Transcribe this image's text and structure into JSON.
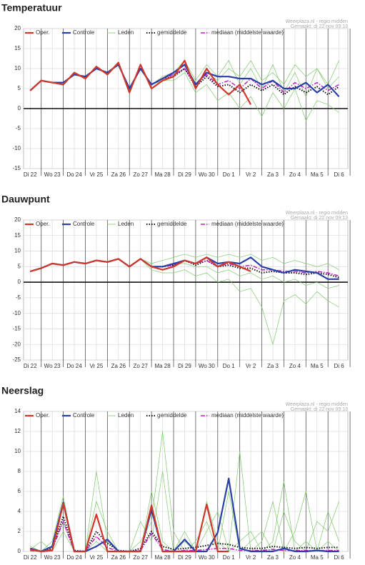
{
  "chart_data": [
    {
      "type": "line",
      "title": "Temperatuur",
      "source": "Weerplaza.nl - regio midden",
      "created": "Gemaakt: di 22 nov 09:13",
      "x": [
        0,
        0.5,
        1,
        1.5,
        2,
        2.5,
        3,
        3.5,
        4,
        4.5,
        5,
        5.5,
        6,
        6.5,
        7,
        7.5,
        8,
        8.5,
        9,
        9.5,
        10,
        10.5,
        11,
        11.5,
        12,
        12.5,
        13,
        13.5,
        14
      ],
      "xlim": [
        -0.3,
        14.4
      ],
      "xticks": [
        {
          "value": 0,
          "label": "Di 22"
        },
        {
          "value": 1,
          "label": "Wo 23"
        },
        {
          "value": 2,
          "label": "Do 24"
        },
        {
          "value": 3,
          "label": "Vr 25"
        },
        {
          "value": 4,
          "label": "Za 26"
        },
        {
          "value": 5,
          "label": "Zo 27"
        },
        {
          "value": 6,
          "label": "Ma 28"
        },
        {
          "value": 7,
          "label": "Di 29"
        },
        {
          "value": 8,
          "label": "Wo 30"
        },
        {
          "value": 9,
          "label": "Do 1"
        },
        {
          "value": 10,
          "label": "Vr 2"
        },
        {
          "value": 11,
          "label": "Za 3"
        },
        {
          "value": 12,
          "label": "Zo 4"
        },
        {
          "value": 13,
          "label": "Ma 5"
        },
        {
          "value": 14,
          "label": "Di 6"
        }
      ],
      "ylim": [
        -15,
        20
      ],
      "yticks": [
        -15,
        -10,
        -5,
        0,
        5,
        10,
        15,
        20
      ],
      "grid": true,
      "zero_line": true,
      "series": [
        {
          "name": "Oper.",
          "color": "#d0372b",
          "style": "solid",
          "values": [
            4.5,
            7,
            6.5,
            6,
            9,
            7.5,
            10.5,
            8.5,
            11.5,
            4,
            11,
            5,
            7,
            8,
            12,
            5,
            10,
            6,
            3.5,
            6,
            1,
            null,
            null,
            null,
            null,
            null,
            null,
            null,
            null
          ]
        },
        {
          "name": "Controle",
          "color": "#2b3fa8",
          "style": "solid",
          "values": [
            4.5,
            7,
            6.5,
            6.5,
            8.5,
            8,
            10,
            9,
            11,
            5,
            10,
            6,
            7.5,
            9,
            11,
            6,
            9,
            8,
            8,
            7.5,
            7.5,
            6,
            7,
            5,
            5,
            6.5,
            4,
            6,
            3
          ]
        },
        {
          "name": "Leden",
          "color": "#7ec86a",
          "style": "thin",
          "members": [
            [
              4.5,
              7,
              6.5,
              6.5,
              8.5,
              8,
              10,
              9,
              11,
              5,
              10,
              6,
              8,
              9,
              12,
              7,
              11,
              8,
              12,
              6,
              10,
              5,
              11,
              4,
              9,
              3,
              10,
              5,
              8
            ],
            [
              4.5,
              7,
              6.5,
              6.5,
              8.5,
              8,
              10,
              9,
              11,
              5,
              10,
              6,
              7,
              7,
              9,
              4,
              6,
              2,
              4,
              0,
              3,
              -2,
              4,
              0,
              5,
              -3,
              2,
              1,
              -1
            ],
            [
              4.5,
              7,
              6.5,
              6.5,
              8.5,
              8,
              10,
              9,
              11,
              5,
              10,
              6,
              7,
              8,
              10,
              6,
              9,
              7,
              10,
              8,
              12,
              7,
              9,
              6,
              11,
              8,
              10,
              6,
              12
            ]
          ]
        },
        {
          "name": "gemiddelde",
          "color": "#111111",
          "style": "dotted",
          "values": [
            4.5,
            7,
            6.5,
            6.5,
            8.5,
            8,
            10,
            9,
            11,
            5,
            10,
            6,
            7.5,
            8,
            10,
            5.5,
            8,
            5.5,
            6,
            4,
            6,
            4.5,
            6,
            3.5,
            5.5,
            4,
            5.5,
            3.5,
            5.5
          ]
        },
        {
          "name": "mediaan (middelste waarde)",
          "color": "#c020c0",
          "style": "dashdot",
          "values": [
            4.5,
            7,
            6.5,
            6.5,
            8.5,
            8,
            10,
            9,
            11,
            5,
            10,
            6,
            7.5,
            8.5,
            10,
            6,
            8.5,
            6,
            7,
            5,
            7.5,
            5,
            7,
            4,
            6.5,
            5,
            6.5,
            4.5,
            6
          ]
        }
      ]
    },
    {
      "type": "line",
      "title": "Dauwpunt",
      "source": "Weerplaza.nl - regio midden",
      "created": "Gemaakt: di 22 nov 09:13",
      "x": [
        0,
        0.5,
        1,
        1.5,
        2,
        2.5,
        3,
        3.5,
        4,
        4.5,
        5,
        5.5,
        6,
        6.5,
        7,
        7.5,
        8,
        8.5,
        9,
        9.5,
        10,
        10.5,
        11,
        11.5,
        12,
        12.5,
        13,
        13.5,
        14
      ],
      "xlim": [
        -0.3,
        14.4
      ],
      "xticks": [
        {
          "value": 0,
          "label": "Di 22"
        },
        {
          "value": 1,
          "label": "Wo 23"
        },
        {
          "value": 2,
          "label": "Do 24"
        },
        {
          "value": 3,
          "label": "Vr 25"
        },
        {
          "value": 4,
          "label": "Za 26"
        },
        {
          "value": 5,
          "label": "Zo 27"
        },
        {
          "value": 6,
          "label": "Ma 28"
        },
        {
          "value": 7,
          "label": "Di 29"
        },
        {
          "value": 8,
          "label": "Wo 30"
        },
        {
          "value": 9,
          "label": "Do 1"
        },
        {
          "value": 10,
          "label": "Vr 2"
        },
        {
          "value": 11,
          "label": "Za 3"
        },
        {
          "value": 12,
          "label": "Zo 4"
        },
        {
          "value": 13,
          "label": "Ma 5"
        },
        {
          "value": 14,
          "label": "Di 6"
        }
      ],
      "ylim": [
        -25,
        20
      ],
      "yticks": [
        -25,
        -20,
        -15,
        -10,
        -5,
        0,
        5,
        10,
        15,
        20
      ],
      "grid": true,
      "zero_line": true,
      "series": [
        {
          "name": "Oper.",
          "color": "#d0372b",
          "style": "solid",
          "values": [
            3.5,
            4.5,
            6,
            5.5,
            6.5,
            6,
            7,
            6.5,
            7.5,
            5,
            7.5,
            5,
            4,
            5,
            7,
            6,
            8,
            5,
            6.5,
            5,
            3.5,
            null,
            null,
            null,
            null,
            null,
            null,
            null,
            null
          ]
        },
        {
          "name": "Controle",
          "color": "#2b3fa8",
          "style": "solid",
          "values": [
            3.5,
            4.5,
            6,
            5.5,
            6.5,
            6,
            7,
            6.5,
            7.5,
            5,
            7.5,
            5,
            5,
            6,
            7,
            6,
            8,
            6,
            6.5,
            6,
            8,
            5,
            4,
            3,
            4,
            3.5,
            3,
            1,
            1
          ]
        },
        {
          "name": "Leden",
          "color": "#7ec86a",
          "style": "thin",
          "members": [
            [
              3.5,
              4.5,
              6,
              5.5,
              6.5,
              6,
              7,
              6.5,
              7.5,
              5,
              7.5,
              6,
              7,
              8,
              9,
              8,
              9,
              8,
              9,
              8,
              9,
              7,
              8,
              6,
              7,
              6,
              5,
              6,
              4
            ],
            [
              3.5,
              4.5,
              6,
              5.5,
              6.5,
              6,
              7,
              6.5,
              7.5,
              5,
              7.5,
              4,
              3,
              3,
              4,
              2,
              3,
              0,
              1,
              -3,
              -2,
              -8,
              -20,
              -6,
              -4,
              -7,
              -3,
              -6,
              -8
            ],
            [
              3.5,
              4.5,
              6,
              5.5,
              6.5,
              6,
              7,
              6.5,
              7.5,
              5,
              7.5,
              5,
              5,
              6,
              6,
              5,
              5,
              3,
              4,
              2,
              3,
              1,
              2,
              0,
              1,
              -1,
              0,
              -2,
              -1
            ]
          ]
        },
        {
          "name": "gemiddelde",
          "color": "#111111",
          "style": "dotted",
          "values": [
            3.5,
            4.5,
            6,
            5.5,
            6.5,
            6,
            7,
            6.5,
            7.5,
            5,
            7.5,
            5,
            5,
            5.5,
            7,
            5.5,
            7,
            5,
            5.5,
            4.5,
            4.5,
            3,
            3.5,
            3,
            3,
            2.5,
            3,
            2.5,
            1.5
          ]
        },
        {
          "name": "mediaan (middelste waarde)",
          "color": "#c020c0",
          "style": "dashdot",
          "values": [
            3.5,
            4.5,
            6,
            5.5,
            6.5,
            6,
            7,
            6.5,
            7.5,
            5,
            7.5,
            5,
            5,
            5.5,
            7,
            6,
            7,
            5,
            6,
            5,
            5.5,
            4,
            4,
            3.5,
            3.5,
            3,
            3.5,
            3,
            2
          ]
        }
      ]
    },
    {
      "type": "line",
      "title": "Neerslag",
      "source": "Weerplaza.nl - regio midden",
      "created": "Gemaakt: di 22 nov 09:13",
      "x": [
        0,
        0.5,
        1,
        1.5,
        2,
        2.5,
        3,
        3.5,
        4,
        4.5,
        5,
        5.5,
        6,
        6.5,
        7,
        7.5,
        8,
        8.5,
        9,
        9.5,
        10,
        10.5,
        11,
        11.5,
        12,
        12.5,
        13,
        13.5,
        14
      ],
      "xlim": [
        -0.3,
        14.4
      ],
      "xticks": [
        {
          "value": 0,
          "label": "Di 22"
        },
        {
          "value": 1,
          "label": "Wo 23"
        },
        {
          "value": 2,
          "label": "Do 24"
        },
        {
          "value": 3,
          "label": "Vr 25"
        },
        {
          "value": 4,
          "label": "Za 26"
        },
        {
          "value": 5,
          "label": "Zo 27"
        },
        {
          "value": 6,
          "label": "Ma 28"
        },
        {
          "value": 7,
          "label": "Di 29"
        },
        {
          "value": 8,
          "label": "Wo 30"
        },
        {
          "value": 9,
          "label": "Do 1"
        },
        {
          "value": 10,
          "label": "Vr 2"
        },
        {
          "value": 11,
          "label": "Za 3"
        },
        {
          "value": 12,
          "label": "Zo 4"
        },
        {
          "value": 13,
          "label": "Ma 5"
        },
        {
          "value": 14,
          "label": "Di 6"
        }
      ],
      "ylim": [
        0,
        14
      ],
      "yticks": [
        0,
        2,
        4,
        6,
        8,
        10,
        12,
        14
      ],
      "grid": true,
      "zero_line": false,
      "series": [
        {
          "name": "Oper.",
          "color": "#d0372b",
          "style": "solid",
          "values": [
            0.2,
            0,
            0.1,
            4.8,
            0,
            0,
            3.7,
            0,
            0,
            0,
            0,
            4.6,
            0,
            0,
            0,
            0,
            4.7,
            0,
            0,
            null,
            null,
            null,
            null,
            null,
            null,
            null,
            null,
            null,
            null
          ]
        },
        {
          "name": "Controle",
          "color": "#2b3fa8",
          "style": "solid",
          "values": [
            0.3,
            0,
            0.5,
            4.9,
            0,
            0,
            0.5,
            1.2,
            0,
            0,
            0,
            4.2,
            0,
            0,
            1.2,
            0,
            0,
            1.9,
            7.3,
            0.3,
            0,
            0,
            0,
            0.3,
            0,
            0,
            0.1,
            0,
            0
          ]
        },
        {
          "name": "Leden",
          "color": "#7ec86a",
          "style": "thin",
          "members": [
            [
              0.5,
              0,
              1,
              5.5,
              0,
              0,
              5,
              2,
              0,
              0,
              1,
              3,
              12,
              2,
              0,
              1,
              3,
              0,
              6,
              0,
              1,
              2,
              0,
              4,
              1,
              0,
              3,
              2,
              5
            ],
            [
              0,
              0,
              0.5,
              3,
              0,
              0,
              8,
              1,
              0,
              0,
              0,
              6,
              1,
              0,
              2,
              0,
              5,
              1,
              0,
              10,
              0,
              1,
              5,
              0,
              2,
              6,
              0,
              1,
              0
            ],
            [
              0.2,
              1,
              0,
              2,
              0,
              0,
              1,
              0,
              0,
              0,
              3,
              1,
              8,
              0,
              1,
              0,
              2,
              4,
              0,
              1,
              2,
              0,
              1,
              7,
              0,
              1,
              0,
              4,
              1
            ]
          ]
        },
        {
          "name": "gemiddelde",
          "color": "#111111",
          "style": "dotted",
          "values": [
            0.2,
            0,
            0.3,
            3.5,
            0.1,
            0,
            2,
            0.8,
            0.1,
            0,
            0.3,
            2,
            0.5,
            0.2,
            0.3,
            0.4,
            0.6,
            0.8,
            0.7,
            0.4,
            0.3,
            0.3,
            0.5,
            0.4,
            0.3,
            0.4,
            0.3,
            0.4,
            0.4
          ]
        },
        {
          "name": "mediaan (middelste waarde)",
          "color": "#c020c0",
          "style": "dashdot",
          "values": [
            0.1,
            0,
            0.2,
            3,
            0,
            0,
            1.5,
            0.4,
            0,
            0,
            0.1,
            1.8,
            0.2,
            0,
            0.1,
            0.1,
            0.2,
            0.3,
            0.3,
            0.1,
            0.1,
            0.1,
            0.2,
            0.1,
            0.1,
            0.1,
            0.1,
            0.1,
            0.1
          ]
        }
      ]
    }
  ]
}
